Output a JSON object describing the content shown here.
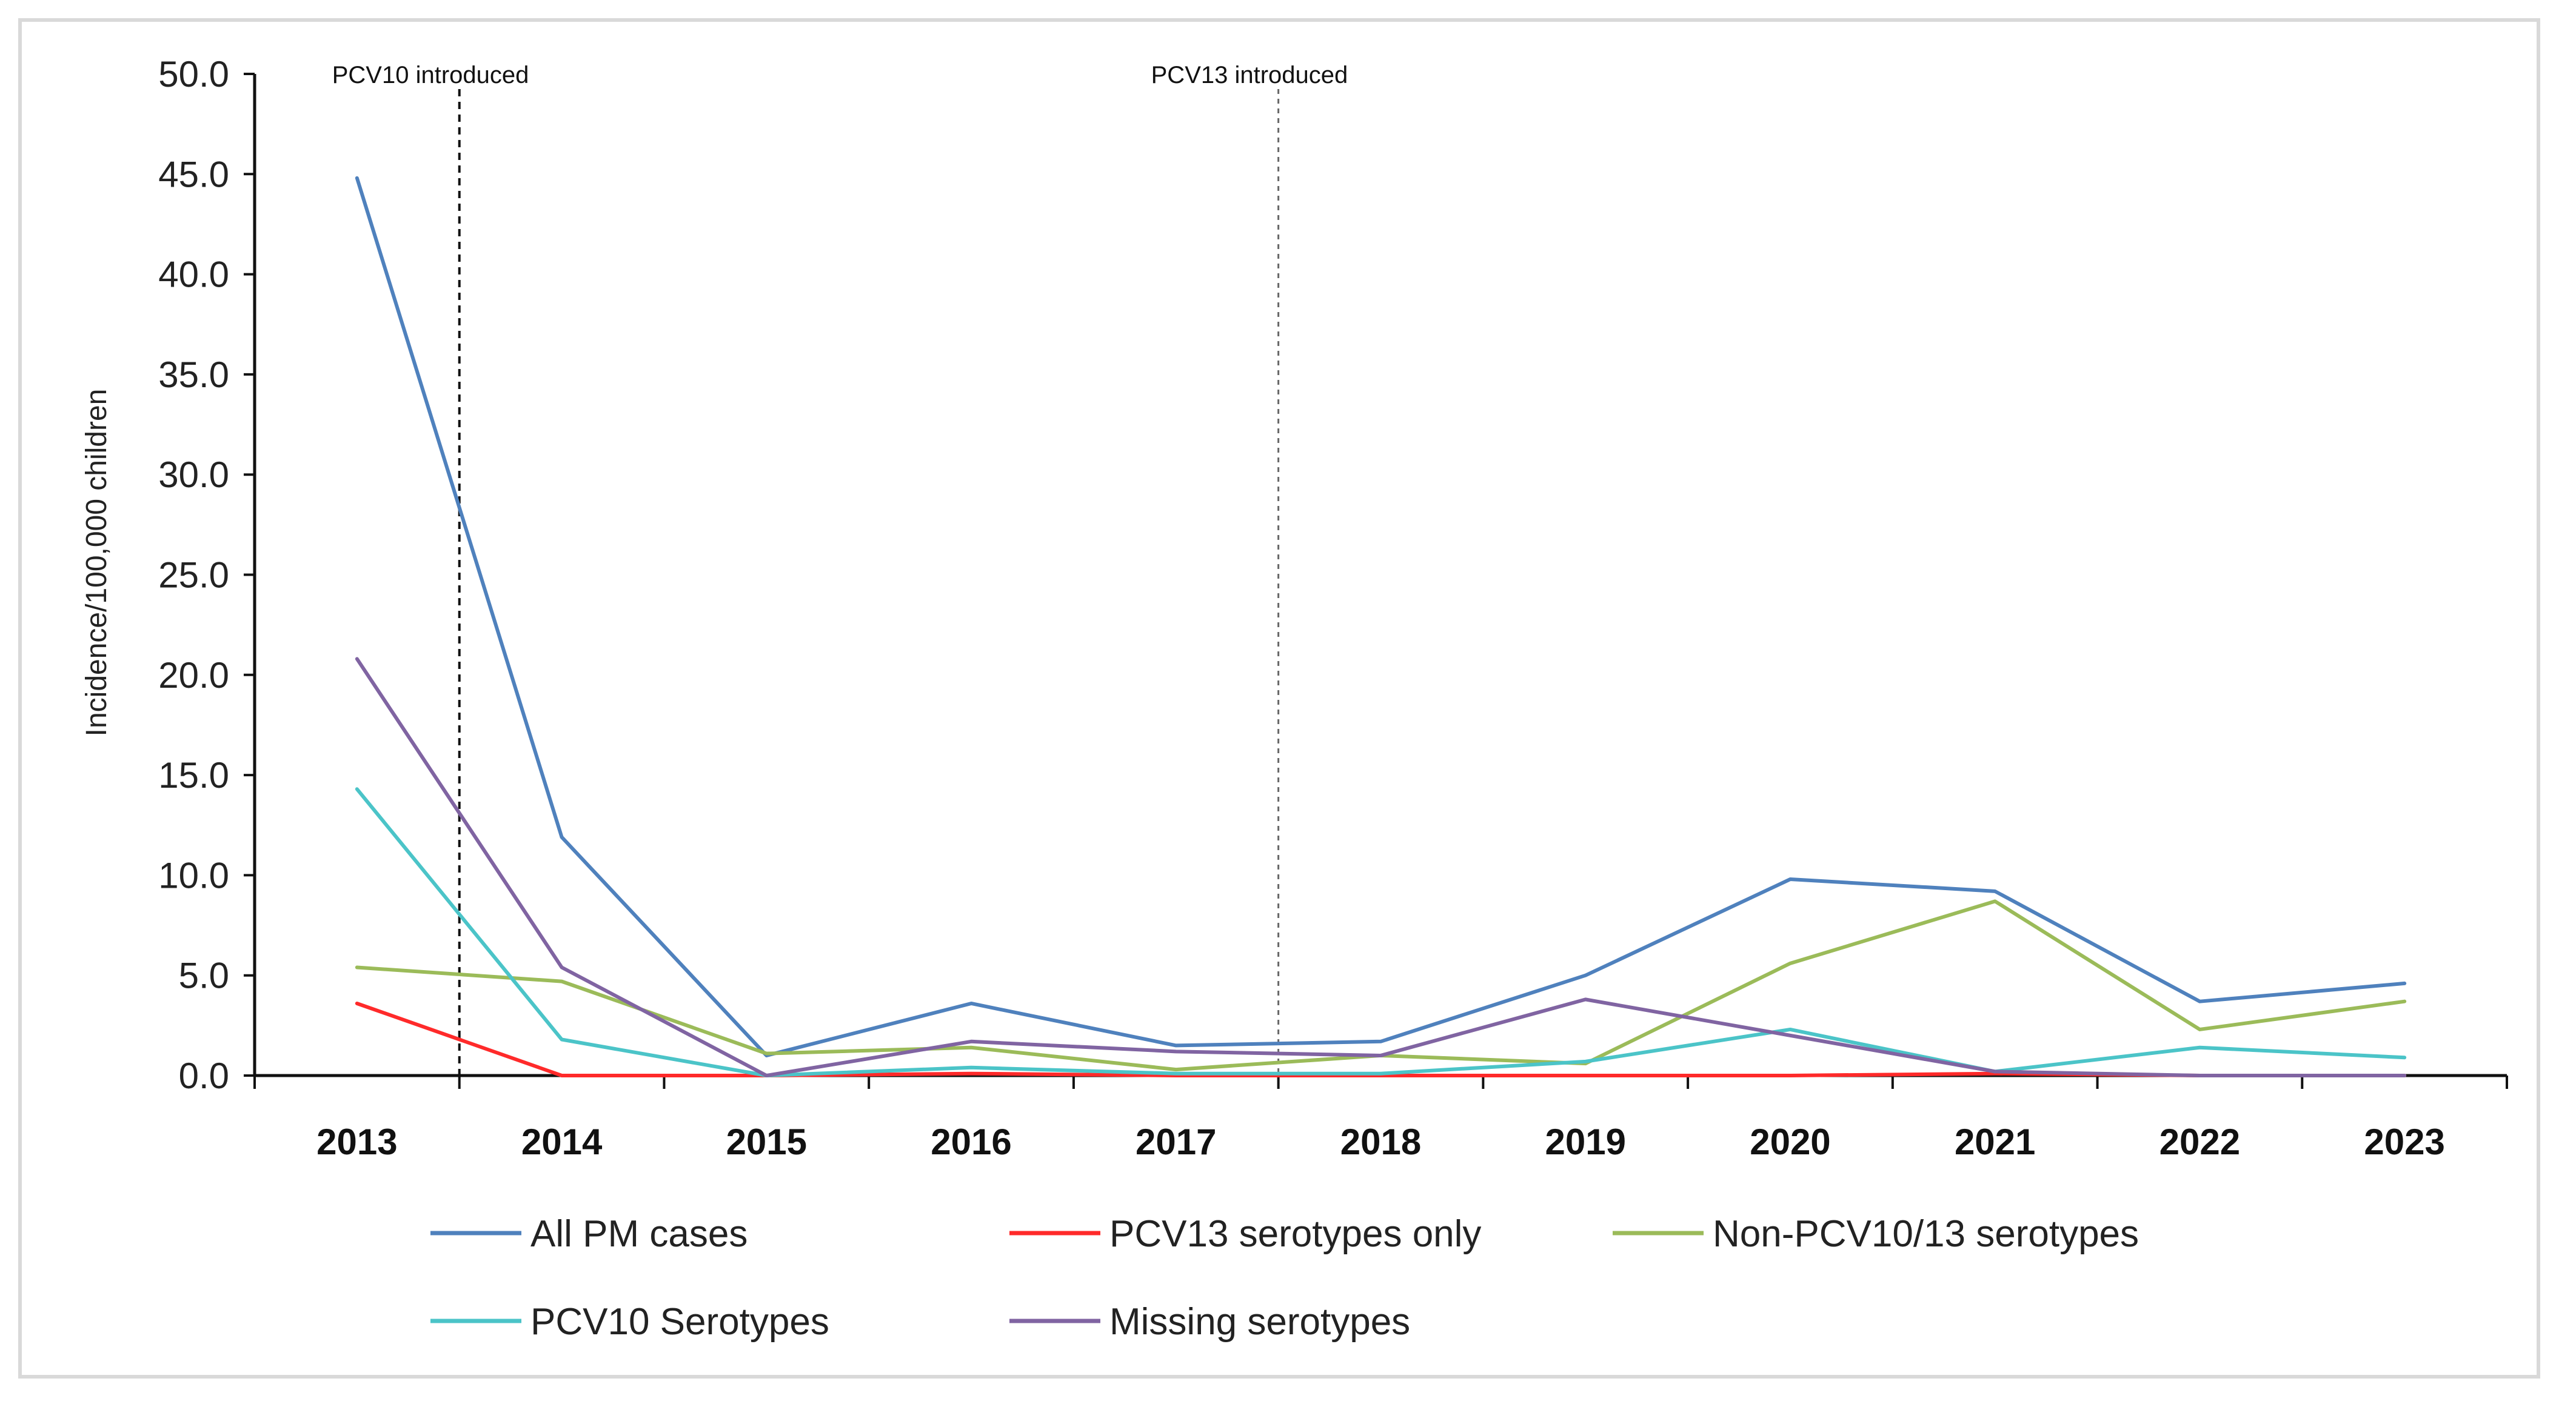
{
  "chart_data": {
    "type": "line",
    "title": "",
    "xlabel": "",
    "ylabel": "Incidence/100,000 children",
    "categories": [
      "2013",
      "2014",
      "2015",
      "2016",
      "2017",
      "2018",
      "2019",
      "2020",
      "2021",
      "2022",
      "2023"
    ],
    "ylim": [
      0,
      50
    ],
    "yticks": [
      "0.0",
      "5.0",
      "10.0",
      "15.0",
      "20.0",
      "25.0",
      "30.0",
      "35.0",
      "40.0",
      "45.0",
      "50.0"
    ],
    "grid": false,
    "legend_position": "bottom",
    "series": [
      {
        "name": "All PM cases",
        "color": "#4f81bd",
        "values": [
          44.8,
          11.9,
          1.0,
          3.6,
          1.5,
          1.7,
          5.0,
          9.8,
          9.2,
          3.7,
          4.6
        ]
      },
      {
        "name": "PCV13 serotypes only",
        "color": "#ff2a2a",
        "values": [
          3.6,
          0.0,
          0.0,
          0.1,
          0.0,
          0.0,
          0.0,
          0.0,
          0.1,
          0.0,
          0.0
        ]
      },
      {
        "name": "Non-PCV10/13 serotypes",
        "color": "#9bbb59",
        "values": [
          5.4,
          4.7,
          1.1,
          1.4,
          0.3,
          1.0,
          0.6,
          5.6,
          8.7,
          2.3,
          3.7
        ]
      },
      {
        "name": "PCV10 Serotypes",
        "color": "#4bc4c8",
        "values": [
          14.3,
          1.8,
          0.0,
          0.4,
          0.1,
          0.1,
          0.7,
          2.3,
          0.2,
          1.4,
          0.9
        ]
      },
      {
        "name": "Missing serotypes",
        "color": "#8064a2",
        "values": [
          20.8,
          5.4,
          0.0,
          1.7,
          1.2,
          1.0,
          3.8,
          2.0,
          0.2,
          0.0,
          0.0
        ]
      }
    ],
    "annotations": [
      {
        "text": "PCV10 introduced",
        "x_between": [
          "2013",
          "2014"
        ],
        "style": "dashed"
      },
      {
        "text": "PCV13 introduced",
        "x_between": [
          "2017",
          "2018"
        ],
        "style": "dotted"
      }
    ]
  }
}
